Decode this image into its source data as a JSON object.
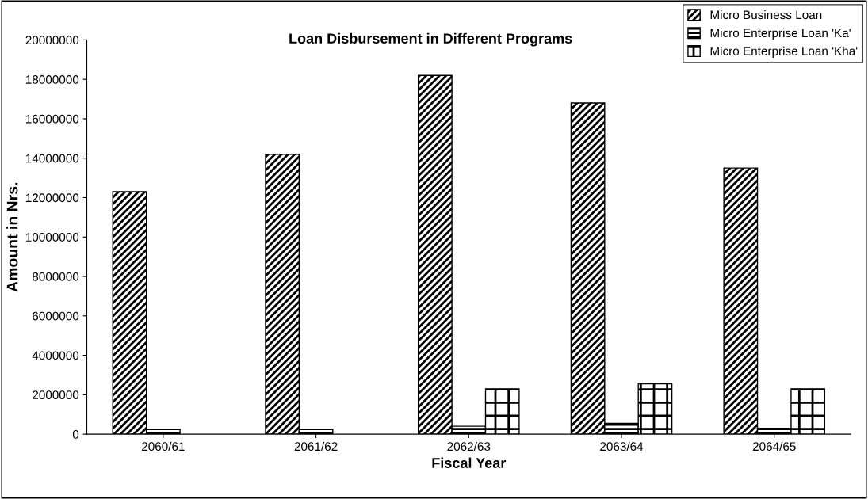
{
  "chart_data": {
    "type": "bar",
    "title": "Loan Disbursement in Different Programs",
    "xlabel": "Fiscal Year",
    "ylabel": "Amount in Nrs.",
    "categories": [
      "2060/61",
      "2061/62",
      "2062/63",
      "2063/64",
      "2064/65"
    ],
    "series": [
      {
        "name": "Micro Business Loan",
        "color": "#000000",
        "values": [
          12300000,
          14200000,
          18200000,
          16800000,
          13500000
        ]
      },
      {
        "name": "Micro Enterprise Loan 'Ka'",
        "color": "#000000",
        "values": [
          250000,
          250000,
          400000,
          550000,
          300000
        ]
      },
      {
        "name": "Micro Enterprise Loan 'Kha'",
        "color": "#000000",
        "values": [
          null,
          null,
          2300000,
          2550000,
          2300000
        ]
      }
    ],
    "ylim": [
      0,
      20000000
    ],
    "yticks": [
      0,
      2000000,
      4000000,
      6000000,
      8000000,
      10000000,
      12000000,
      14000000,
      16000000,
      18000000,
      20000000
    ],
    "grid": false,
    "legend": "top right"
  }
}
